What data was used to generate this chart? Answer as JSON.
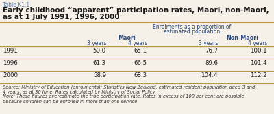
{
  "table_label": "Table K1.1",
  "title_line1": "Early childhood “apparent” participation rates, Maori, non-Maori,",
  "title_line2": "as at 1 July 1991, 1996, 2000",
  "header_main_line1": "Enrolments as a proportion of",
  "header_main_line2": "estimated population",
  "col_group1": "Maori",
  "col_group2": "Non-Maori",
  "col_sub": [
    "3 years",
    "4 years",
    "3 years",
    "4 years"
  ],
  "row_labels": [
    "1991",
    "1996",
    "2000"
  ],
  "data": [
    [
      50.0,
      65.1,
      76.7,
      100.1
    ],
    [
      61.3,
      66.5,
      89.6,
      101.4
    ],
    [
      58.9,
      68.3,
      104.4,
      112.2
    ]
  ],
  "source_text": "Source: Ministry of Education (enrolments); Statistics New Zealand, estimated resident population aged 3 and\n4 years, as at 30 June. Rates calculated by Ministry of Social Policy",
  "note_text": "Note: These figures overestimate the true participation rate. Rates in excess of 100 per cent are possible\nbecause children can be enrolled in more than one service",
  "bg_color": "#f5f0e8",
  "header_color": "#2c4a7c",
  "table_label_color": "#5a7ab0",
  "title_color": "#1a1a1a",
  "data_color": "#1a1a1a",
  "line_color": "#b8964a",
  "italic_color": "#333333",
  "fig_width": 4.0,
  "fig_height": 1.67,
  "dpi": 100
}
